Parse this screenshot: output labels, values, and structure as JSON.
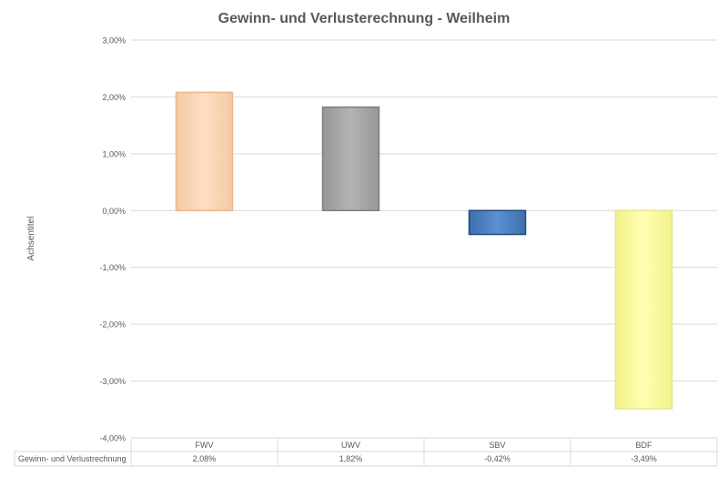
{
  "chart_data": {
    "type": "bar",
    "title": "Gewinn- und Verlusterechnung - Weilheim",
    "xlabel": "",
    "ylabel": "Achsentitel",
    "categories": [
      "FWV",
      "UWV",
      "SBV",
      "BDF"
    ],
    "series": [
      {
        "name": "Gewinn- und Verlustrechnung",
        "values": [
          2.08,
          1.82,
          -0.42,
          -3.49
        ],
        "value_labels": [
          "2,08%",
          "1,82%",
          "-0,42%",
          "-3,49%"
        ]
      }
    ],
    "bar_colors": [
      "#FCD5B4",
      "#A6A6A6",
      "#4F81BD",
      "#FFFF99"
    ],
    "bar_border_colors": [
      "#E9B98C",
      "#7F7F7F",
      "#1F497D",
      "#E6E68A"
    ],
    "ylim": [
      -4,
      3
    ],
    "yticks": [
      3,
      2,
      1,
      0,
      -1,
      -2,
      -3,
      -4
    ],
    "ytick_labels": [
      "3,00%",
      "2,00%",
      "1,00%",
      "0,00%",
      "-1,00%",
      "-2,00%",
      "-3,00%",
      "-4,00%"
    ],
    "grid": true,
    "legend": "data-table-below"
  }
}
